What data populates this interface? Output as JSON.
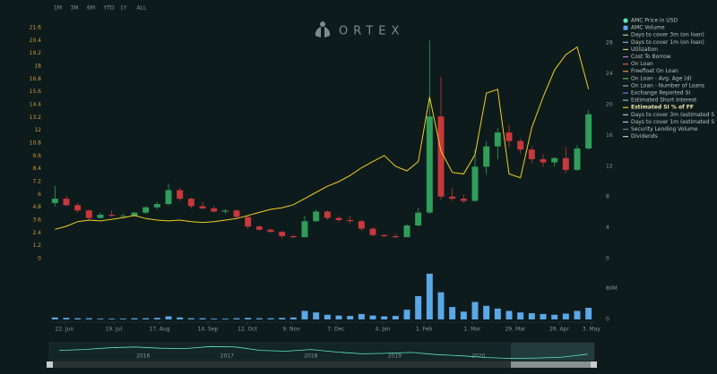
{
  "chart_data": {
    "type": "candlestick",
    "range_buttons": [
      "1M",
      "3M",
      "6M",
      "YTD",
      "1Y",
      "ALL"
    ],
    "logo": "ORTEX",
    "up_color": "#2f9e5a",
    "down_color": "#c8383c",
    "xlim": [
      -0.5,
      47.5
    ],
    "xticks": [
      {
        "value": 0.84,
        "label": "22. Jun"
      },
      {
        "value": 5.18,
        "label": "19. Jul"
      },
      {
        "value": 9.21,
        "label": "17. Aug"
      },
      {
        "value": 13.47,
        "label": "14. Sep"
      },
      {
        "value": 16.95,
        "label": "12. Oct"
      },
      {
        "value": 20.82,
        "label": "9. Nov"
      },
      {
        "value": 24.76,
        "label": "7. Dec"
      },
      {
        "value": 28.87,
        "label": "4. Jan"
      },
      {
        "value": 32.5,
        "label": "1. Feb"
      },
      {
        "value": 36.76,
        "label": "1. Mar"
      },
      {
        "value": 40.55,
        "label": "29. Mar"
      },
      {
        "value": 44.42,
        "label": "26. Apr"
      },
      {
        "value": 47.26,
        "label": "3. May"
      }
    ],
    "ylim": [
      0,
      21.6
    ],
    "yticks": [
      0,
      1.2,
      2.4,
      3.6,
      4.8,
      6,
      7.2,
      8.4,
      9.6,
      10.8,
      12,
      13.2,
      14.4,
      15.6,
      16.8,
      18,
      19.2,
      20.4,
      21.6
    ],
    "y2lim": [
      0,
      30
    ],
    "y2ticks": [
      0,
      4,
      8,
      12,
      16,
      20,
      24,
      28
    ],
    "volume_ylim": [
      0,
      120
    ],
    "volume_yticks": [
      0,
      {
        "value": 80,
        "label": "80M"
      }
    ],
    "series": [
      {
        "name": "AMC Price in USD",
        "color": "#5de8b8",
        "open": [
          5.2,
          5.6,
          5.0,
          4.5,
          3.8,
          4.1,
          4.0,
          4.0,
          4.3,
          4.8,
          5.1,
          6.4,
          5.6,
          4.9,
          4.7,
          4.4,
          4.5,
          3.9,
          3.0,
          2.7,
          2.5,
          2.1,
          2.0,
          3.5,
          4.4,
          3.8,
          3.6,
          3.5,
          2.8,
          2.2,
          2.1,
          2.0,
          3.1,
          4.3,
          13.3,
          5.8,
          5.6,
          5.4,
          8.6,
          10.5,
          11.8,
          11.0,
          10.2,
          9.3,
          9.0,
          9.4,
          8.3,
          10.3
        ],
        "high": [
          6.8,
          5.9,
          5.2,
          4.6,
          4.3,
          4.5,
          4.2,
          4.4,
          4.9,
          5.3,
          7.0,
          6.6,
          5.7,
          5.3,
          4.9,
          4.6,
          4.6,
          4.0,
          3.1,
          2.8,
          2.6,
          2.2,
          4.0,
          4.6,
          4.5,
          4.0,
          4.0,
          3.6,
          2.9,
          2.3,
          2.3,
          3.2,
          4.7,
          20.4,
          17.0,
          6.6,
          6.0,
          10.2,
          11.0,
          12.2,
          12.5,
          11.2,
          10.5,
          9.8,
          9.5,
          10.4,
          10.6,
          13.9
        ],
        "low": [
          4.9,
          4.9,
          4.3,
          3.6,
          3.7,
          3.9,
          3.8,
          3.9,
          4.2,
          4.6,
          5.0,
          5.4,
          4.7,
          4.6,
          4.3,
          4.2,
          3.8,
          2.8,
          2.6,
          2.4,
          1.9,
          1.9,
          2.0,
          3.4,
          3.6,
          3.4,
          3.3,
          2.6,
          2.1,
          2.0,
          1.9,
          2.0,
          3.0,
          4.2,
          5.5,
          5.4,
          5.2,
          5.3,
          7.9,
          9.3,
          10.4,
          9.8,
          8.9,
          8.6,
          8.6,
          8.0,
          8.2,
          10.2
        ],
        "close": [
          5.6,
          5.0,
          4.5,
          3.8,
          4.1,
          4.0,
          4.0,
          4.3,
          4.8,
          5.1,
          6.4,
          5.6,
          4.9,
          4.7,
          4.4,
          4.5,
          3.9,
          3.0,
          2.7,
          2.5,
          2.1,
          2.0,
          3.5,
          4.4,
          3.8,
          3.6,
          3.5,
          2.8,
          2.2,
          2.1,
          2.0,
          3.1,
          4.3,
          13.3,
          5.8,
          5.6,
          5.4,
          8.6,
          10.5,
          11.8,
          11.0,
          10.2,
          9.3,
          9.0,
          9.4,
          8.3,
          10.3,
          13.5
        ]
      },
      {
        "name": "AMC Volume",
        "color": "#5aa8e8",
        "axis": "volume",
        "values": [
          5,
          4,
          3,
          3,
          2,
          2,
          2,
          3,
          3,
          4,
          8,
          5,
          3,
          3,
          2,
          2,
          3,
          4,
          3,
          3,
          4,
          5,
          22,
          18,
          12,
          10,
          9,
          14,
          10,
          8,
          9,
          25,
          60,
          118,
          70,
          32,
          20,
          45,
          35,
          28,
          22,
          18,
          16,
          14,
          12,
          15,
          22,
          30
        ]
      },
      {
        "name": "Days to cover 3m (on loan)",
        "color": "#9be39b"
      },
      {
        "name": "Days to cover 1m (on loan)",
        "color": "#7fb0e0"
      },
      {
        "name": "Utilization",
        "color": "#d8d870"
      },
      {
        "name": "Cost To Borrow",
        "color": "#b080e0"
      },
      {
        "name": "On Loan",
        "color": "#e05050"
      },
      {
        "name": "Freefloat On Loan",
        "color": "#e09040"
      },
      {
        "name": "On Loan - Avg. Age (d)",
        "color": "#60c060"
      },
      {
        "name": "On Loan - Number of Loans",
        "color": "#a0a0a0"
      },
      {
        "name": "Exchange Reported SI",
        "color": "#6080f0"
      },
      {
        "name": "Estimated Short Interest",
        "color": "#80c0c0"
      },
      {
        "name": "Estimated SI % of FF",
        "color": "#f0d020",
        "axis": "y2",
        "values": [
          3.8,
          4.2,
          4.8,
          5.0,
          4.9,
          5.1,
          5.3,
          5.6,
          5.2,
          5.0,
          4.9,
          5.0,
          4.8,
          4.7,
          4.8,
          5.0,
          5.2,
          5.6,
          6.0,
          6.4,
          6.6,
          7.0,
          7.8,
          8.6,
          9.4,
          10.0,
          10.8,
          11.8,
          12.6,
          13.4,
          12.0,
          11.4,
          12.6,
          21.0,
          14.0,
          11.2,
          11.0,
          13.5,
          21.5,
          22.0,
          11.0,
          10.5,
          17.0,
          21.0,
          24.5,
          26.5,
          27.5,
          22.0
        ]
      },
      {
        "name": "Days to cover 3m (estimated S",
        "color": "#c0c0c0"
      },
      {
        "name": "Days to cover 1m (estimated S",
        "color": "#a0c8f0"
      },
      {
        "name": "Security Lending Volume",
        "color": "#808080"
      },
      {
        "name": "Dividends",
        "color": "#c8c0a0"
      }
    ],
    "navigator": {
      "xlim": [
        2014.88,
        2021.38
      ],
      "xticks": [
        2016,
        2017,
        2018,
        2019,
        2020
      ],
      "ylim": [
        0,
        40
      ],
      "x": [
        2015.0,
        2015.3,
        2015.6,
        2015.9,
        2016.2,
        2016.5,
        2016.8,
        2017.1,
        2017.4,
        2017.7,
        2018.0,
        2018.3,
        2018.6,
        2018.9,
        2019.2,
        2019.5,
        2019.8,
        2020.1,
        2020.4,
        2020.7,
        2021.0,
        2021.3
      ],
      "values": [
        22,
        24,
        28,
        30,
        27,
        26,
        31,
        30,
        22,
        20,
        24,
        18,
        14,
        15,
        17,
        12,
        9,
        5,
        3,
        4,
        6,
        13
      ]
    }
  }
}
